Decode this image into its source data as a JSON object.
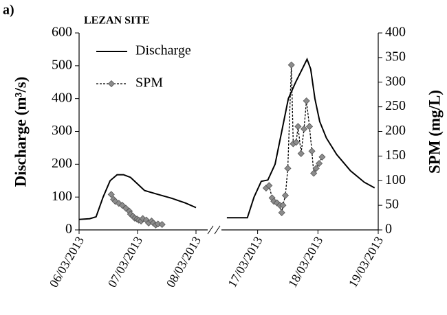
{
  "chart_data": {
    "type": "line",
    "panel_label": "a)",
    "title": "LEZAN SITE",
    "y_label": "Discharge (m³/s)",
    "y2_label": "SPM (mg/L)",
    "xlim": [
      [
        6,
        8.2
      ],
      [
        16.4,
        19
      ]
    ],
    "xticks": [
      {
        "value": 6,
        "label": "06/03/2013"
      },
      {
        "value": 7,
        "label": "07/03/2013"
      },
      {
        "value": 8,
        "label": "08/03/2013"
      },
      {
        "value": 17,
        "label": "17/03/2013"
      },
      {
        "value": 18,
        "label": "18/03/2013"
      },
      {
        "value": 19,
        "label": "19/03/2013"
      }
    ],
    "ylim": [
      0,
      600
    ],
    "yticks": [
      0,
      100,
      200,
      300,
      400,
      500,
      600
    ],
    "y2lim": [
      0,
      400
    ],
    "y2ticks": [
      0,
      50,
      100,
      150,
      200,
      250,
      300,
      350,
      400
    ],
    "legend": "top-left",
    "series": [
      {
        "name": "Discharge",
        "color": "#000000",
        "dashed": false,
        "marker": null,
        "x": [
          6.0,
          6.18,
          6.29,
          6.41,
          6.53,
          6.65,
          6.76,
          6.88,
          7.0,
          7.12,
          7.35,
          7.59,
          7.82,
          8.0,
          null,
          16.49,
          16.83,
          16.94,
          17.06,
          17.17,
          17.29,
          17.4,
          17.51,
          17.63,
          17.74,
          17.82,
          17.88,
          17.95,
          18.03,
          18.14,
          18.31,
          18.54,
          18.77,
          18.94
        ],
        "values": [
          32,
          34,
          40,
          100,
          150,
          168,
          168,
          160,
          140,
          120,
          108,
          96,
          82,
          68,
          null,
          37,
          37,
          100,
          148,
          152,
          200,
          300,
          400,
          450,
          490,
          520,
          490,
          400,
          330,
          280,
          230,
          180,
          145,
          128
        ]
      },
      {
        "name": "SPM",
        "color": "#000000",
        "dashed": true,
        "marker": "diamond",
        "marker_color": "#8c8c8c",
        "axis": "y2",
        "x": [
          6.55,
          6.59,
          6.62,
          6.68,
          6.74,
          6.8,
          6.86,
          6.88,
          6.92,
          6.95,
          6.99,
          7.02,
          7.06,
          7.09,
          7.15,
          7.19,
          7.24,
          7.27,
          7.31,
          7.35,
          7.42,
          null,
          17.14,
          17.19,
          17.24,
          17.27,
          17.32,
          17.37,
          17.4,
          17.42,
          17.46,
          17.5,
          17.56,
          17.59,
          17.64,
          17.67,
          17.72,
          17.77,
          17.81,
          17.86,
          17.9,
          17.93,
          17.97,
          18.02,
          18.07
        ],
        "values": [
          72,
          62,
          58,
          54,
          50,
          44,
          38,
          32,
          28,
          24,
          22,
          20,
          18,
          23,
          20,
          14,
          18,
          14,
          10,
          12,
          11,
          null,
          85,
          90,
          65,
          58,
          55,
          50,
          35,
          50,
          70,
          125,
          335,
          175,
          178,
          210,
          155,
          205,
          262,
          210,
          160,
          115,
          125,
          135,
          148
        ]
      }
    ]
  }
}
